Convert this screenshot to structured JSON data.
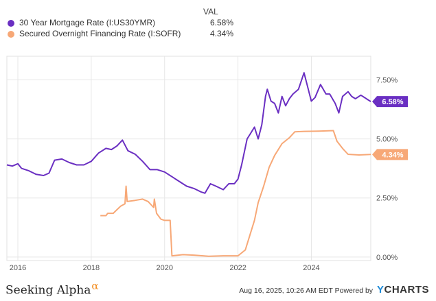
{
  "legend": {
    "header": "VAL",
    "series": [
      {
        "name": "30 Year Mortgage Rate (I:US30YMR)",
        "value": "6.58%",
        "color": "#6a2fc2"
      },
      {
        "name": "Secured Overnight Financing Rate (I:SOFR)",
        "value": "4.34%",
        "color": "#f7a877"
      }
    ]
  },
  "footer": {
    "logo": "Seeking Alpha",
    "logo_mark": "α",
    "stamp": "Aug 16, 2025, 10:26 AM EDT Powered by",
    "brand_y": "Y",
    "brand_rest": "CHARTS"
  },
  "chart_data": {
    "type": "line",
    "title": "",
    "xlabel": "",
    "ylabel": "",
    "x_ticks": [
      "2016",
      "2018",
      "2020",
      "2022",
      "2024"
    ],
    "y_ticks": [
      "7.50%",
      "5.00%",
      "2.50%",
      "0.00%"
    ],
    "xlim": [
      2015.7,
      2025.62
    ],
    "ylim": [
      -0.15,
      8.5
    ],
    "grid": true,
    "series": [
      {
        "name": "30 Year Mortgage Rate (I:US30YMR)",
        "color": "#6a2fc2",
        "end_label": "6.58%",
        "points": [
          [
            2015.7,
            3.9
          ],
          [
            2015.85,
            3.85
          ],
          [
            2016.0,
            3.95
          ],
          [
            2016.1,
            3.75
          ],
          [
            2016.3,
            3.65
          ],
          [
            2016.5,
            3.5
          ],
          [
            2016.7,
            3.45
          ],
          [
            2016.85,
            3.55
          ],
          [
            2017.0,
            4.1
          ],
          [
            2017.2,
            4.15
          ],
          [
            2017.4,
            4.0
          ],
          [
            2017.6,
            3.9
          ],
          [
            2017.8,
            3.9
          ],
          [
            2018.0,
            4.05
          ],
          [
            2018.2,
            4.4
          ],
          [
            2018.4,
            4.6
          ],
          [
            2018.55,
            4.55
          ],
          [
            2018.7,
            4.7
          ],
          [
            2018.85,
            4.95
          ],
          [
            2019.0,
            4.5
          ],
          [
            2019.2,
            4.35
          ],
          [
            2019.4,
            4.05
          ],
          [
            2019.6,
            3.7
          ],
          [
            2019.8,
            3.7
          ],
          [
            2020.0,
            3.6
          ],
          [
            2020.2,
            3.4
          ],
          [
            2020.4,
            3.2
          ],
          [
            2020.6,
            3.0
          ],
          [
            2020.8,
            2.9
          ],
          [
            2021.0,
            2.75
          ],
          [
            2021.1,
            2.7
          ],
          [
            2021.25,
            3.1
          ],
          [
            2021.4,
            3.0
          ],
          [
            2021.6,
            2.85
          ],
          [
            2021.75,
            3.1
          ],
          [
            2021.9,
            3.1
          ],
          [
            2022.0,
            3.3
          ],
          [
            2022.1,
            3.9
          ],
          [
            2022.25,
            5.0
          ],
          [
            2022.35,
            5.25
          ],
          [
            2022.45,
            5.5
          ],
          [
            2022.55,
            5.0
          ],
          [
            2022.65,
            5.6
          ],
          [
            2022.75,
            6.8
          ],
          [
            2022.8,
            7.1
          ],
          [
            2022.9,
            6.6
          ],
          [
            2023.0,
            6.5
          ],
          [
            2023.1,
            6.1
          ],
          [
            2023.2,
            6.8
          ],
          [
            2023.3,
            6.4
          ],
          [
            2023.4,
            6.7
          ],
          [
            2023.5,
            6.9
          ],
          [
            2023.65,
            7.1
          ],
          [
            2023.8,
            7.8
          ],
          [
            2023.9,
            7.2
          ],
          [
            2024.0,
            6.6
          ],
          [
            2024.1,
            6.75
          ],
          [
            2024.25,
            7.3
          ],
          [
            2024.4,
            6.9
          ],
          [
            2024.5,
            6.9
          ],
          [
            2024.65,
            6.5
          ],
          [
            2024.75,
            6.1
          ],
          [
            2024.85,
            6.8
          ],
          [
            2025.0,
            7.0
          ],
          [
            2025.1,
            6.8
          ],
          [
            2025.2,
            6.7
          ],
          [
            2025.35,
            6.85
          ],
          [
            2025.5,
            6.7
          ],
          [
            2025.62,
            6.58
          ]
        ]
      },
      {
        "name": "Secured Overnight Financing Rate (I:SOFR)",
        "color": "#f7a877",
        "end_label": "4.34%",
        "points": [
          [
            2018.25,
            1.75
          ],
          [
            2018.4,
            1.75
          ],
          [
            2018.45,
            1.85
          ],
          [
            2018.6,
            1.85
          ],
          [
            2018.7,
            2.0
          ],
          [
            2018.8,
            2.15
          ],
          [
            2018.92,
            2.25
          ],
          [
            2018.95,
            3.0
          ],
          [
            2018.98,
            2.35
          ],
          [
            2019.2,
            2.4
          ],
          [
            2019.4,
            2.45
          ],
          [
            2019.55,
            2.35
          ],
          [
            2019.7,
            2.1
          ],
          [
            2019.72,
            2.45
          ],
          [
            2019.78,
            1.85
          ],
          [
            2019.9,
            1.6
          ],
          [
            2020.0,
            1.55
          ],
          [
            2020.15,
            1.55
          ],
          [
            2020.2,
            0.05
          ],
          [
            2020.5,
            0.1
          ],
          [
            2020.8,
            0.08
          ],
          [
            2021.2,
            0.03
          ],
          [
            2021.6,
            0.05
          ],
          [
            2022.0,
            0.05
          ],
          [
            2022.2,
            0.3
          ],
          [
            2022.3,
            0.8
          ],
          [
            2022.45,
            1.55
          ],
          [
            2022.55,
            2.3
          ],
          [
            2022.7,
            3.0
          ],
          [
            2022.85,
            3.8
          ],
          [
            2023.0,
            4.3
          ],
          [
            2023.2,
            4.8
          ],
          [
            2023.4,
            5.05
          ],
          [
            2023.55,
            5.3
          ],
          [
            2023.8,
            5.32
          ],
          [
            2024.2,
            5.33
          ],
          [
            2024.6,
            5.35
          ],
          [
            2024.7,
            4.9
          ],
          [
            2024.85,
            4.6
          ],
          [
            2025.0,
            4.35
          ],
          [
            2025.3,
            4.32
          ],
          [
            2025.62,
            4.34
          ]
        ]
      }
    ]
  }
}
